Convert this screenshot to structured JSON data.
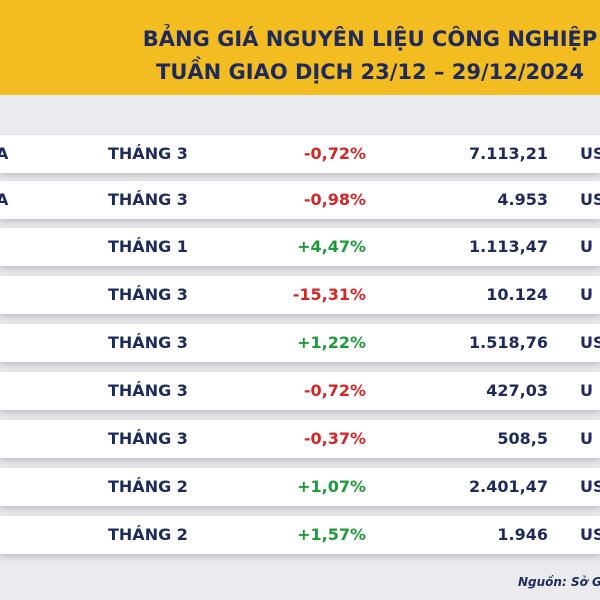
{
  "header": {
    "title_line1": "BẢNG GIÁ NGUYÊN LIỆU CÔNG NGHIỆP",
    "title_line2": "TUẦN GIAO DỊCH 23/12 – 29/12/2024"
  },
  "rows": [
    {
      "name": "A",
      "month": "THÁNG 3",
      "change": "-0,72%",
      "direction": "down",
      "price": "7.113,21",
      "unit": "US"
    },
    {
      "name": "A",
      "month": "THÁNG 3",
      "change": "-0,98%",
      "direction": "down",
      "price": "4.953",
      "unit": "US"
    },
    {
      "name": "",
      "month": "THÁNG 1",
      "change": "+4,47%",
      "direction": "up",
      "price": "1.113,47",
      "unit": "U"
    },
    {
      "name": "",
      "month": "THÁNG 3",
      "change": "-15,31%",
      "direction": "down",
      "price": "10.124",
      "unit": "U"
    },
    {
      "name": "",
      "month": "THÁNG 3",
      "change": "+1,22%",
      "direction": "up",
      "price": "1.518,76",
      "unit": "US"
    },
    {
      "name": "",
      "month": "THÁNG 3",
      "change": "-0,72%",
      "direction": "down",
      "price": "427,03",
      "unit": "U"
    },
    {
      "name": "",
      "month": "THÁNG 3",
      "change": "-0,37%",
      "direction": "down",
      "price": "508,5",
      "unit": "U"
    },
    {
      "name": "",
      "month": "THÁNG 2",
      "change": "+1,07%",
      "direction": "up",
      "price": "2.401,47",
      "unit": "US"
    },
    {
      "name": "",
      "month": "THÁNG 2",
      "change": "+1,57%",
      "direction": "up",
      "price": "1.946",
      "unit": "US"
    }
  ],
  "footer": {
    "source": "Nguồn: Sở G"
  },
  "colors": {
    "banner": "#f3bd22",
    "title": "#1f2a5c",
    "negative": "#d32626",
    "positive": "#1f9a3a"
  }
}
